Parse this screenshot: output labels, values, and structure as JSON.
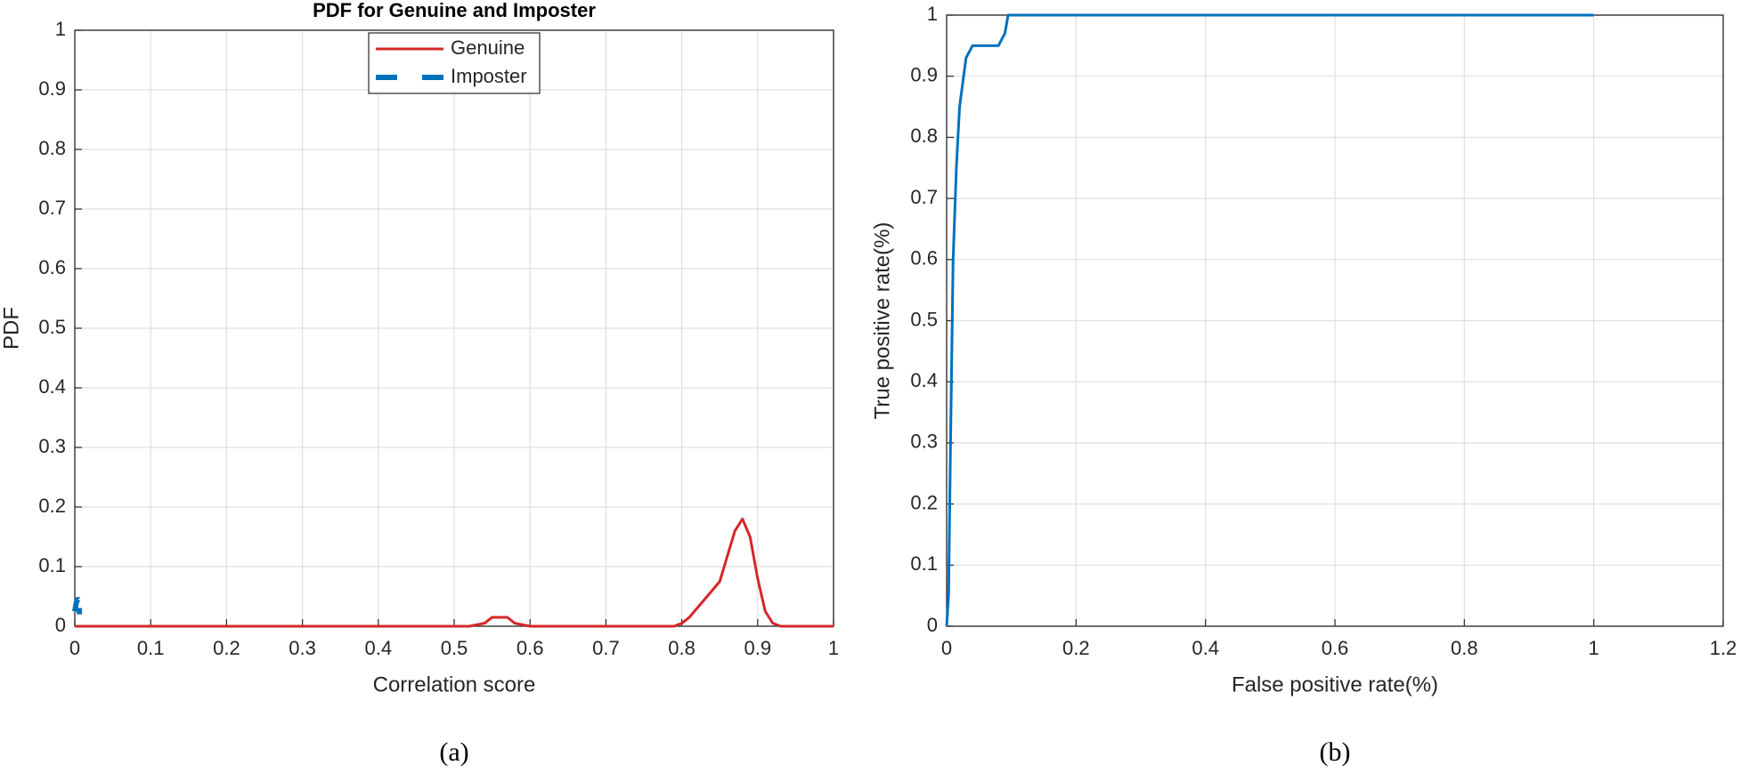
{
  "chart_data": [
    {
      "type": "line",
      "title": "PDF for Genuine and Imposter",
      "x_label": "Correlation score",
      "y_label": "PDF",
      "caption": "(a)",
      "xlim": [
        0,
        1
      ],
      "ylim": [
        0,
        1
      ],
      "xticks": [
        0,
        0.1,
        0.2,
        0.3,
        0.4,
        0.5,
        0.6,
        0.7,
        0.8,
        0.9,
        1
      ],
      "yticks": [
        0,
        0.1,
        0.2,
        0.3,
        0.4,
        0.5,
        0.6,
        0.7,
        0.8,
        0.9,
        1
      ],
      "grid": true,
      "legend": "top-center",
      "series": [
        {
          "name": "Genuine",
          "color": "#d62728",
          "style": "solid",
          "x": [
            0,
            0.52,
            0.54,
            0.55,
            0.57,
            0.58,
            0.6,
            0.79,
            0.8,
            0.81,
            0.83,
            0.85,
            0.87,
            0.88,
            0.89,
            0.9,
            0.91,
            0.92,
            0.93,
            1
          ],
          "values": [
            0,
            0,
            0.005,
            0.015,
            0.015,
            0.005,
            0,
            0,
            0.005,
            0.015,
            0.045,
            0.075,
            0.16,
            0.18,
            0.15,
            0.08,
            0.025,
            0.005,
            0,
            0
          ]
        },
        {
          "name": "Imposter",
          "color": "#0072bd",
          "style": "dashed",
          "x": [
            0,
            0.002,
            0.004,
            0.006,
            0.006
          ],
          "values": [
            0.025,
            0.04,
            0.045,
            0.04,
            0.02
          ]
        }
      ]
    },
    {
      "type": "line",
      "x_label": "False positive rate(%)",
      "y_label": "True positive rate(%)",
      "caption": "(b)",
      "xlim": [
        0,
        1.2
      ],
      "ylim": [
        0,
        1
      ],
      "xticks": [
        0,
        0.2,
        0.4,
        0.6,
        0.8,
        1,
        1.2
      ],
      "yticks": [
        0,
        0.1,
        0.2,
        0.3,
        0.4,
        0.5,
        0.6,
        0.7,
        0.8,
        0.9,
        1
      ],
      "grid": true,
      "series": [
        {
          "color": "#0072bd",
          "style": "solid",
          "x": [
            0,
            0.003,
            0.006,
            0.01,
            0.015,
            0.02,
            0.03,
            0.04,
            0.05,
            0.08,
            0.09,
            0.095,
            0.1,
            1
          ],
          "values": [
            0,
            0.05,
            0.3,
            0.6,
            0.75,
            0.85,
            0.93,
            0.95,
            0.95,
            0.95,
            0.97,
            1,
            1,
            1
          ]
        }
      ]
    }
  ]
}
